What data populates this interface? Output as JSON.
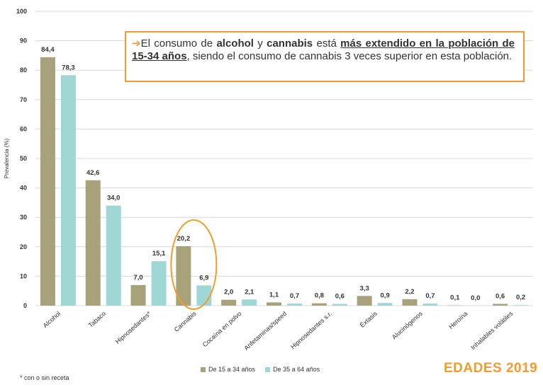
{
  "chart_data": {
    "type": "bar",
    "categories": [
      "Alcohol",
      "Tabaco",
      "Hipnosedantes*",
      "Cannabis",
      "Cocaína en polvo",
      "Anfetaminas/speed",
      "Hipnosedantes s.r.",
      "Éxtasis",
      "Alucinógenos",
      "Heroína",
      "Inhalables volátiles"
    ],
    "series": [
      {
        "name": "De 15 a 34 años",
        "values": [
          84.4,
          42.6,
          7.0,
          20.2,
          2.0,
          1.1,
          0.8,
          3.3,
          2.2,
          0.1,
          0.6
        ],
        "labels": [
          "84,4",
          "42,6",
          "7,0",
          "20,2",
          "2,0",
          "1,1",
          "0,8",
          "3,3",
          "2,2",
          "0,1",
          "0,6"
        ],
        "color": "#a7a27a"
      },
      {
        "name": "De 35 a 64 años",
        "values": [
          78.3,
          34.0,
          15.1,
          6.9,
          2.1,
          0.7,
          0.6,
          0.9,
          0.7,
          0.0,
          0.2
        ],
        "labels": [
          "78,3",
          "34,0",
          "15,1",
          "6,9",
          "2,1",
          "0,7",
          "0,6",
          "0,9",
          "0,7",
          "0,0",
          "0,2"
        ],
        "color": "#9fd6d6"
      }
    ],
    "yticks": [
      "0",
      "10",
      "20",
      "30",
      "40",
      "50",
      "60",
      "70",
      "80",
      "90",
      "100"
    ],
    "ylim": [
      0,
      100
    ],
    "ylabel": "Prevalencia (%)",
    "grid": true,
    "legend_position": "bottom"
  },
  "callout": {
    "arrow": "➔",
    "t1": "El consumo de ",
    "b1": "alcohol",
    "t2": " y ",
    "b2": "cannabis",
    "t3": " está ",
    "u1": "más extendido en la población de 15-34 años",
    "t4": ", siendo el consumo de cannabis 3 veces superior en esta población."
  },
  "highlight": {
    "category": "Cannabis",
    "color": "#f39c2c"
  },
  "footnote": "* con o sin receta",
  "brand": "EDADES 2019"
}
